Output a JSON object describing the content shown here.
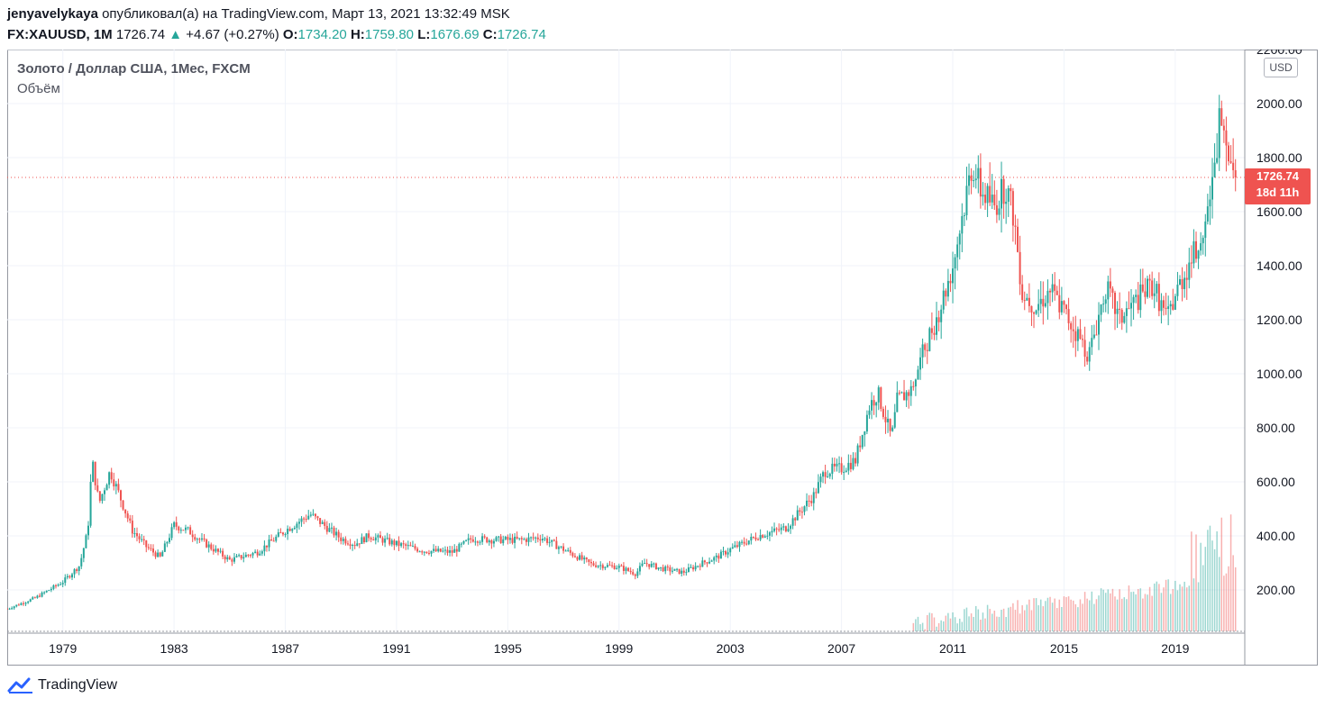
{
  "header": {
    "author": "jenyavelykaya",
    "published_text": "опубликовал(а) на TradingView.com, Март 13, 2021 13:32:49 MSK",
    "symbol": "FX:XAUUSD, 1M",
    "last": "1726.74",
    "change": "+4.67 (+0.27%)",
    "o_label": "O:",
    "o_val": "1734.20",
    "h_label": "H:",
    "h_val": "1759.80",
    "l_label": "L:",
    "l_val": "1676.69",
    "c_label": "C:",
    "c_val": "1726.74"
  },
  "legend": {
    "title": "Золото / Доллар США, 1Мес, FXCM",
    "volume": "Объём"
  },
  "axis": {
    "currency": "USD",
    "price_tag": "1726.74",
    "countdown": "18d 11h"
  },
  "footer": {
    "brand": "TradingView"
  },
  "colors": {
    "up": "#26a69a",
    "down": "#ef5350",
    "grid": "#f0f3fa",
    "axis_text": "#131722"
  },
  "chart_data": {
    "type": "candlestick",
    "title": "Золото / Доллар США, 1Мес, FXCM",
    "x_ticks": [
      "1979",
      "1983",
      "1987",
      "1991",
      "1995",
      "1999",
      "2003",
      "2007",
      "2011",
      "2015",
      "2019"
    ],
    "y_ticks": [
      "200.00",
      "400.00",
      "600.00",
      "800.00",
      "1000.00",
      "1200.00",
      "1400.00",
      "1600.00",
      "1800.00",
      "2000.00",
      "2200.00"
    ],
    "ylim": [
      40,
      2200
    ],
    "xlim": [
      1977.0,
      2021.5
    ],
    "last_price": 1726.74,
    "anchors": [
      {
        "t": 1977.0,
        "p": 130
      },
      {
        "t": 1978.0,
        "p": 170
      },
      {
        "t": 1979.0,
        "p": 230
      },
      {
        "t": 1979.6,
        "p": 290
      },
      {
        "t": 1979.9,
        "p": 420
      },
      {
        "t": 1980.05,
        "p": 680
      },
      {
        "t": 1980.3,
        "p": 520
      },
      {
        "t": 1980.7,
        "p": 640
      },
      {
        "t": 1981.0,
        "p": 560
      },
      {
        "t": 1981.5,
        "p": 420
      },
      {
        "t": 1982.0,
        "p": 360
      },
      {
        "t": 1982.5,
        "p": 320
      },
      {
        "t": 1983.0,
        "p": 440
      },
      {
        "t": 1983.5,
        "p": 420
      },
      {
        "t": 1984.0,
        "p": 380
      },
      {
        "t": 1985.0,
        "p": 310
      },
      {
        "t": 1986.0,
        "p": 340
      },
      {
        "t": 1987.0,
        "p": 420
      },
      {
        "t": 1987.9,
        "p": 480
      },
      {
        "t": 1988.5,
        "p": 430
      },
      {
        "t": 1989.0,
        "p": 390
      },
      {
        "t": 1989.5,
        "p": 370
      },
      {
        "t": 1990.0,
        "p": 400
      },
      {
        "t": 1991.0,
        "p": 370
      },
      {
        "t": 1992.0,
        "p": 345
      },
      {
        "t": 1993.0,
        "p": 340
      },
      {
        "t": 1993.7,
        "p": 390
      },
      {
        "t": 1994.5,
        "p": 385
      },
      {
        "t": 1995.5,
        "p": 385
      },
      {
        "t": 1996.2,
        "p": 395
      },
      {
        "t": 1997.0,
        "p": 350
      },
      {
        "t": 1998.0,
        "p": 295
      },
      {
        "t": 1999.0,
        "p": 285
      },
      {
        "t": 1999.6,
        "p": 260
      },
      {
        "t": 1999.9,
        "p": 300
      },
      {
        "t": 2000.5,
        "p": 280
      },
      {
        "t": 2001.3,
        "p": 265
      },
      {
        "t": 2002.0,
        "p": 300
      },
      {
        "t": 2002.5,
        "p": 320
      },
      {
        "t": 2003.0,
        "p": 350
      },
      {
        "t": 2004.0,
        "p": 400
      },
      {
        "t": 2005.0,
        "p": 430
      },
      {
        "t": 2006.0,
        "p": 550
      },
      {
        "t": 2006.4,
        "p": 640
      },
      {
        "t": 2007.0,
        "p": 650
      },
      {
        "t": 2007.5,
        "p": 680
      },
      {
        "t": 2008.0,
        "p": 880
      },
      {
        "t": 2008.3,
        "p": 930
      },
      {
        "t": 2008.8,
        "p": 760
      },
      {
        "t": 2009.0,
        "p": 900
      },
      {
        "t": 2009.5,
        "p": 940
      },
      {
        "t": 2010.0,
        "p": 1100
      },
      {
        "t": 2010.5,
        "p": 1230
      },
      {
        "t": 2011.0,
        "p": 1400
      },
      {
        "t": 2011.7,
        "p": 1780
      },
      {
        "t": 2012.0,
        "p": 1680
      },
      {
        "t": 2012.5,
        "p": 1620
      },
      {
        "t": 2012.9,
        "p": 1700
      },
      {
        "t": 2013.2,
        "p": 1580
      },
      {
        "t": 2013.5,
        "p": 1300
      },
      {
        "t": 2014.0,
        "p": 1250
      },
      {
        "t": 2014.5,
        "p": 1310
      },
      {
        "t": 2015.0,
        "p": 1230
      },
      {
        "t": 2015.9,
        "p": 1070
      },
      {
        "t": 2016.5,
        "p": 1320
      },
      {
        "t": 2017.0,
        "p": 1200
      },
      {
        "t": 2017.6,
        "p": 1270
      },
      {
        "t": 2018.2,
        "p": 1330
      },
      {
        "t": 2018.7,
        "p": 1200
      },
      {
        "t": 2019.0,
        "p": 1290
      },
      {
        "t": 2019.5,
        "p": 1410
      },
      {
        "t": 2019.9,
        "p": 1510
      },
      {
        "t": 2020.4,
        "p": 1720
      },
      {
        "t": 2020.6,
        "p": 1970
      },
      {
        "t": 2020.9,
        "p": 1860
      },
      {
        "t": 2021.2,
        "p": 1730
      }
    ]
  }
}
